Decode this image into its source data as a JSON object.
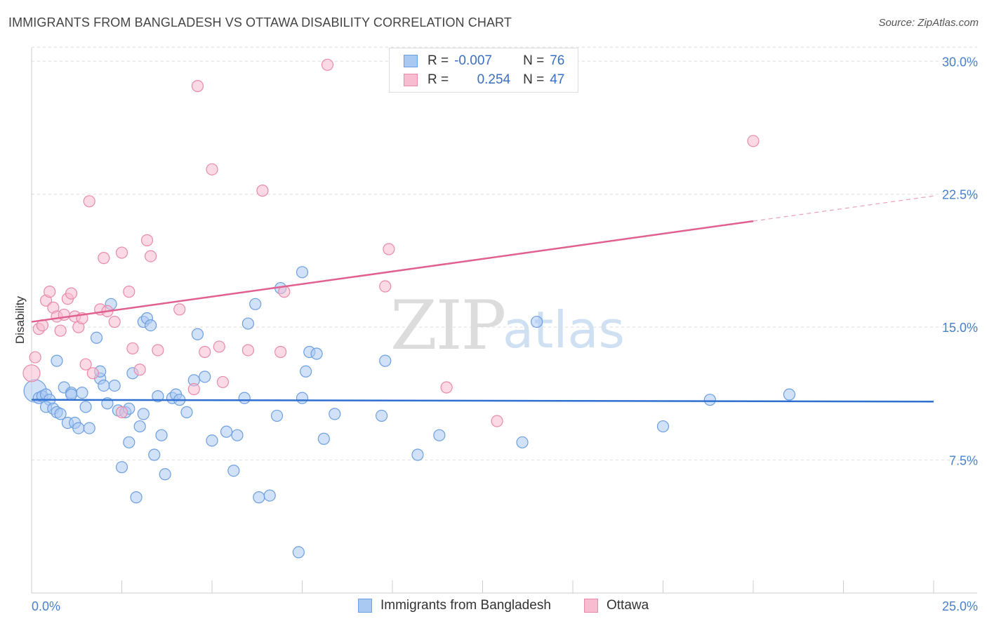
{
  "title": "IMMIGRANTS FROM BANGLADESH VS OTTAWA DISABILITY CORRELATION CHART",
  "source": "Source: ZipAtlas.com",
  "watermark": {
    "zip": "ZIP",
    "atlas": "atlas"
  },
  "legend": {
    "rows": [
      {
        "r_label": "R =",
        "r_value": "-0.007",
        "n_label": "N =",
        "n_value": "76",
        "color": "#a9c9f2",
        "border": "#6d9fe0"
      },
      {
        "r_label": "R =",
        "r_value": "0.254",
        "n_label": "N =",
        "n_value": "47",
        "color": "#f7bcd0",
        "border": "#e98aab"
      }
    ]
  },
  "bottom_legend": [
    {
      "label": "Immigrants from Bangladesh",
      "color": "#a9c9f2",
      "border": "#6d9fe0"
    },
    {
      "label": "Ottawa",
      "color": "#f7bcd0",
      "border": "#e98aab"
    }
  ],
  "chart_data": {
    "type": "scatter",
    "title": "IMMIGRANTS FROM BANGLADESH VS OTTAWA DISABILITY CORRELATION CHART",
    "xlabel": "",
    "ylabel": "Disability",
    "xlim": [
      0,
      25
    ],
    "ylim": [
      0,
      31.0
    ],
    "x_tick_labels": [
      "0.0%",
      "25.0%"
    ],
    "y_ticks": [
      7.5,
      15.0,
      22.5,
      30.0
    ],
    "y_tick_labels": [
      "7.5%",
      "15.0%",
      "22.5%",
      "30.0%"
    ],
    "grid": "horizontal dashed",
    "legend_position": "top-center",
    "series": [
      {
        "name": "Immigrants from Bangladesh",
        "color": "#6d9fe0",
        "fill": "#a9c9f2",
        "trend": {
          "x": [
            0,
            25
          ],
          "y": [
            10.9,
            10.8
          ],
          "solid_to": 25
        },
        "points": [
          [
            0.1,
            11.4
          ],
          [
            0.2,
            11.0
          ],
          [
            0.3,
            11.1
          ],
          [
            0.4,
            11.2
          ],
          [
            0.5,
            10.9
          ],
          [
            0.4,
            10.5
          ],
          [
            0.6,
            10.4
          ],
          [
            0.7,
            10.2
          ],
          [
            0.8,
            10.1
          ],
          [
            0.7,
            13.1
          ],
          [
            0.9,
            11.6
          ],
          [
            1.0,
            9.6
          ],
          [
            1.1,
            11.3
          ],
          [
            1.1,
            11.2
          ],
          [
            1.2,
            9.6
          ],
          [
            1.3,
            9.3
          ],
          [
            1.4,
            11.3
          ],
          [
            1.5,
            10.5
          ],
          [
            1.6,
            9.3
          ],
          [
            1.8,
            14.4
          ],
          [
            1.9,
            12.1
          ],
          [
            1.9,
            12.5
          ],
          [
            2.0,
            11.7
          ],
          [
            2.1,
            10.7
          ],
          [
            2.2,
            16.3
          ],
          [
            2.3,
            11.7
          ],
          [
            2.4,
            10.3
          ],
          [
            2.5,
            7.1
          ],
          [
            2.6,
            10.2
          ],
          [
            2.7,
            10.4
          ],
          [
            2.7,
            8.5
          ],
          [
            2.8,
            12.4
          ],
          [
            2.9,
            5.4
          ],
          [
            3.0,
            9.4
          ],
          [
            3.1,
            10.1
          ],
          [
            3.1,
            15.3
          ],
          [
            3.2,
            15.5
          ],
          [
            3.3,
            15.1
          ],
          [
            3.4,
            7.8
          ],
          [
            3.5,
            11.1
          ],
          [
            3.6,
            8.9
          ],
          [
            3.7,
            6.7
          ],
          [
            3.9,
            11.0
          ],
          [
            4.0,
            11.2
          ],
          [
            4.1,
            10.9
          ],
          [
            4.3,
            10.2
          ],
          [
            4.5,
            12.0
          ],
          [
            4.6,
            14.6
          ],
          [
            4.8,
            12.2
          ],
          [
            5.0,
            8.6
          ],
          [
            5.4,
            9.1
          ],
          [
            5.6,
            6.9
          ],
          [
            5.7,
            8.9
          ],
          [
            5.9,
            11.0
          ],
          [
            6.0,
            15.2
          ],
          [
            6.2,
            16.3
          ],
          [
            6.3,
            5.4
          ],
          [
            6.6,
            5.5
          ],
          [
            6.8,
            10.0
          ],
          [
            6.9,
            17.2
          ],
          [
            7.4,
            2.3
          ],
          [
            7.5,
            18.1
          ],
          [
            7.5,
            11.0
          ],
          [
            7.6,
            12.5
          ],
          [
            7.7,
            13.6
          ],
          [
            7.9,
            13.5
          ],
          [
            8.1,
            8.7
          ],
          [
            8.4,
            10.1
          ],
          [
            9.7,
            10.0
          ],
          [
            9.8,
            13.1
          ],
          [
            10.7,
            7.8
          ],
          [
            11.3,
            8.9
          ],
          [
            13.6,
            8.5
          ],
          [
            14.0,
            15.3
          ],
          [
            17.5,
            9.4
          ],
          [
            18.8,
            10.9
          ],
          [
            21.0,
            11.2
          ]
        ]
      },
      {
        "name": "Ottawa",
        "color": "#e98aab",
        "fill": "#f7bcd0",
        "trend": {
          "x": [
            0,
            25
          ],
          "y": [
            15.3,
            22.4
          ],
          "solid_to": 20
        },
        "points": [
          [
            0.0,
            12.4
          ],
          [
            0.1,
            13.3
          ],
          [
            0.2,
            14.9
          ],
          [
            0.3,
            15.1
          ],
          [
            0.4,
            16.5
          ],
          [
            0.5,
            17.0
          ],
          [
            0.6,
            16.1
          ],
          [
            0.7,
            15.6
          ],
          [
            0.8,
            14.8
          ],
          [
            0.9,
            15.7
          ],
          [
            1.0,
            16.6
          ],
          [
            1.1,
            16.9
          ],
          [
            1.2,
            15.6
          ],
          [
            1.3,
            15.0
          ],
          [
            1.4,
            15.5
          ],
          [
            1.5,
            12.9
          ],
          [
            1.6,
            22.1
          ],
          [
            1.7,
            12.4
          ],
          [
            1.9,
            16.0
          ],
          [
            2.0,
            18.9
          ],
          [
            2.1,
            15.9
          ],
          [
            2.3,
            15.3
          ],
          [
            2.5,
            10.2
          ],
          [
            2.5,
            19.2
          ],
          [
            2.7,
            17.0
          ],
          [
            2.8,
            13.8
          ],
          [
            3.0,
            12.6
          ],
          [
            3.2,
            19.9
          ],
          [
            3.3,
            19.0
          ],
          [
            3.5,
            13.7
          ],
          [
            4.1,
            16.0
          ],
          [
            4.5,
            11.5
          ],
          [
            4.8,
            13.6
          ],
          [
            4.6,
            28.6
          ],
          [
            5.0,
            23.9
          ],
          [
            5.2,
            13.9
          ],
          [
            5.3,
            11.9
          ],
          [
            6.0,
            13.7
          ],
          [
            6.4,
            22.7
          ],
          [
            6.9,
            13.6
          ],
          [
            7.0,
            17.0
          ],
          [
            8.2,
            29.8
          ],
          [
            9.8,
            17.3
          ],
          [
            9.9,
            19.4
          ],
          [
            11.5,
            11.6
          ],
          [
            12.9,
            9.7
          ],
          [
            20.0,
            25.5
          ]
        ]
      }
    ]
  }
}
